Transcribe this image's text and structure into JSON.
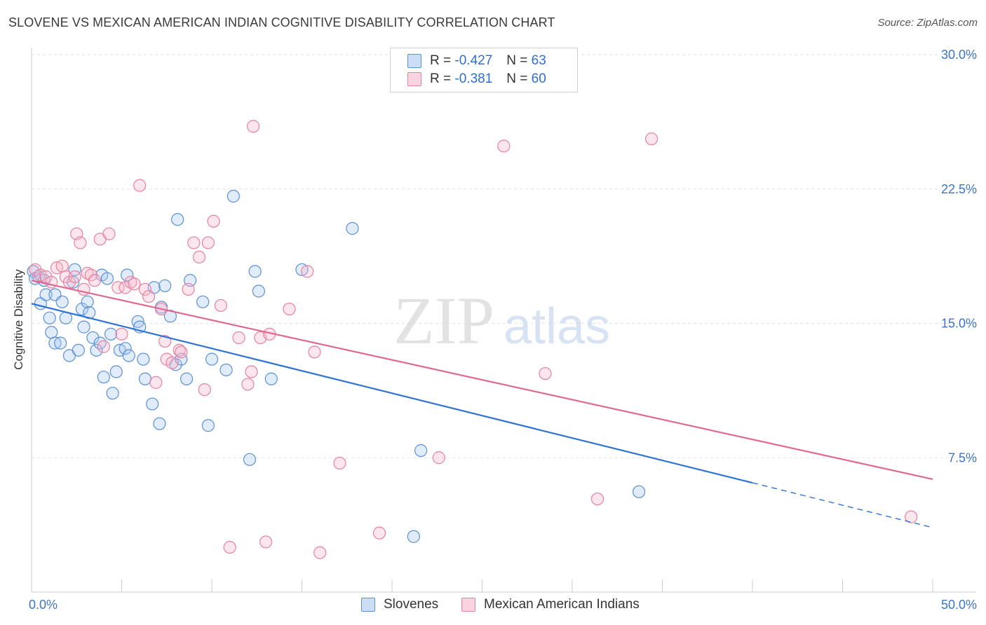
{
  "header": {
    "title": "SLOVENE VS MEXICAN AMERICAN INDIAN COGNITIVE DISABILITY CORRELATION CHART",
    "source": "Source: ZipAtlas.com"
  },
  "watermark": {
    "zip": "ZIP",
    "atlas": "atlas"
  },
  "legend": {
    "rows": [
      {
        "r_label": "R =",
        "r_value": "-0.427",
        "n_label": "N =",
        "n_value": "63",
        "color": "#a9c8f0"
      },
      {
        "r_label": "R =",
        "r_value": "-0.381",
        "n_label": "N =",
        "n_value": "60",
        "color": "#f5b8cb"
      }
    ]
  },
  "bottom_legend": [
    {
      "label": "Slovenes",
      "color": "#a9c8f0"
    },
    {
      "label": "Mexican American Indians",
      "color": "#f5b8cb"
    }
  ],
  "colors": {
    "blue_fill": "rgba(169,200,240,0.35)",
    "blue_stroke": "#5b8fd6",
    "blue_line": "#2e73d6",
    "pink_fill": "rgba(245,184,203,0.35)",
    "pink_stroke": "#e8809f",
    "pink_line": "#e0698f",
    "grid": "#e3e3e3",
    "axis_text": "#3b74c9"
  },
  "chart_data": {
    "type": "scatter",
    "title": "SLOVENE VS MEXICAN AMERICAN INDIAN COGNITIVE DISABILITY CORRELATION CHART",
    "xlabel": "",
    "ylabel": "Cognitive Disability",
    "xlim": [
      0,
      50
    ],
    "ylim": [
      0,
      30
    ],
    "x_tick_labels": [
      "0.0%",
      "50.0%"
    ],
    "y_ticks": [
      7.5,
      15.0,
      22.5,
      30.0
    ],
    "y_tick_labels": [
      "7.5%",
      "15.0%",
      "22.5%",
      "30.0%"
    ],
    "grid": true,
    "series": [
      {
        "name": "Slovenes",
        "trendline": {
          "x": [
            0,
            40
          ],
          "y": [
            16.1,
            6.1
          ],
          "dashed_to": [
            50,
            3.6
          ]
        },
        "points": [
          [
            0.4,
            17.6
          ],
          [
            0.5,
            16.1
          ],
          [
            0.7,
            17.4
          ],
          [
            0.8,
            16.6
          ],
          [
            1.0,
            15.3
          ],
          [
            1.1,
            14.5
          ],
          [
            1.3,
            13.9
          ],
          [
            1.3,
            16.6
          ],
          [
            1.6,
            13.9
          ],
          [
            1.7,
            16.2
          ],
          [
            1.9,
            15.3
          ],
          [
            2.1,
            13.2
          ],
          [
            2.3,
            17.3
          ],
          [
            2.4,
            18.0
          ],
          [
            2.6,
            13.5
          ],
          [
            2.8,
            15.8
          ],
          [
            2.9,
            14.8
          ],
          [
            3.1,
            16.2
          ],
          [
            3.2,
            15.6
          ],
          [
            3.4,
            14.2
          ],
          [
            3.6,
            13.5
          ],
          [
            3.8,
            13.9
          ],
          [
            3.9,
            17.7
          ],
          [
            4.0,
            12.0
          ],
          [
            4.2,
            17.5
          ],
          [
            4.4,
            14.4
          ],
          [
            4.5,
            11.1
          ],
          [
            4.7,
            12.3
          ],
          [
            4.9,
            13.5
          ],
          [
            5.2,
            13.6
          ],
          [
            5.3,
            17.7
          ],
          [
            5.4,
            13.2
          ],
          [
            5.9,
            15.1
          ],
          [
            6.0,
            14.8
          ],
          [
            6.2,
            13.0
          ],
          [
            6.3,
            11.9
          ],
          [
            6.7,
            10.5
          ],
          [
            6.8,
            17.0
          ],
          [
            7.1,
            9.4
          ],
          [
            7.2,
            15.9
          ],
          [
            7.4,
            17.1
          ],
          [
            7.7,
            15.4
          ],
          [
            8.0,
            12.7
          ],
          [
            8.1,
            20.8
          ],
          [
            8.3,
            13.0
          ],
          [
            8.6,
            11.9
          ],
          [
            8.8,
            17.4
          ],
          [
            9.5,
            16.2
          ],
          [
            9.8,
            9.3
          ],
          [
            10.0,
            13.0
          ],
          [
            10.8,
            12.4
          ],
          [
            11.2,
            22.1
          ],
          [
            12.1,
            7.4
          ],
          [
            12.4,
            17.9
          ],
          [
            12.6,
            16.8
          ],
          [
            13.3,
            11.9
          ],
          [
            15.0,
            18.0
          ],
          [
            17.8,
            20.3
          ],
          [
            21.6,
            7.9
          ],
          [
            21.2,
            3.1
          ],
          [
            33.7,
            5.6
          ],
          [
            0.1,
            17.9
          ],
          [
            0.2,
            17.5
          ]
        ]
      },
      {
        "name": "Mexican American Indians",
        "trendline": {
          "x": [
            0,
            50
          ],
          "y": [
            17.4,
            6.3
          ]
        },
        "points": [
          [
            0.2,
            18.0
          ],
          [
            0.5,
            17.7
          ],
          [
            0.8,
            17.6
          ],
          [
            1.1,
            17.3
          ],
          [
            1.4,
            18.1
          ],
          [
            1.7,
            18.2
          ],
          [
            1.9,
            17.6
          ],
          [
            2.1,
            17.3
          ],
          [
            2.4,
            17.6
          ],
          [
            2.5,
            20.0
          ],
          [
            2.7,
            19.5
          ],
          [
            2.9,
            16.9
          ],
          [
            3.1,
            17.8
          ],
          [
            3.3,
            17.7
          ],
          [
            3.5,
            17.4
          ],
          [
            3.8,
            19.7
          ],
          [
            4.0,
            13.7
          ],
          [
            4.3,
            20.0
          ],
          [
            4.8,
            17.0
          ],
          [
            5.0,
            14.4
          ],
          [
            5.2,
            17.0
          ],
          [
            5.5,
            17.3
          ],
          [
            5.7,
            17.2
          ],
          [
            6.0,
            22.7
          ],
          [
            6.3,
            16.9
          ],
          [
            6.5,
            16.5
          ],
          [
            6.9,
            11.7
          ],
          [
            7.2,
            15.8
          ],
          [
            7.4,
            14.0
          ],
          [
            7.5,
            13.0
          ],
          [
            7.8,
            12.8
          ],
          [
            8.2,
            13.5
          ],
          [
            8.3,
            13.4
          ],
          [
            8.7,
            16.9
          ],
          [
            9.0,
            19.5
          ],
          [
            9.3,
            18.7
          ],
          [
            9.6,
            11.3
          ],
          [
            9.8,
            19.5
          ],
          [
            10.1,
            20.7
          ],
          [
            10.5,
            16.0
          ],
          [
            11.0,
            2.5
          ],
          [
            11.5,
            14.2
          ],
          [
            12.0,
            11.6
          ],
          [
            12.2,
            12.3
          ],
          [
            12.3,
            26.0
          ],
          [
            12.7,
            14.2
          ],
          [
            13.0,
            2.8
          ],
          [
            13.2,
            14.4
          ],
          [
            14.3,
            15.8
          ],
          [
            15.3,
            17.9
          ],
          [
            15.7,
            13.4
          ],
          [
            16.0,
            2.2
          ],
          [
            17.1,
            7.2
          ],
          [
            19.3,
            3.3
          ],
          [
            22.6,
            7.5
          ],
          [
            26.2,
            24.9
          ],
          [
            28.5,
            12.2
          ],
          [
            31.4,
            5.2
          ],
          [
            34.4,
            25.3
          ],
          [
            48.8,
            4.2
          ]
        ]
      }
    ]
  }
}
